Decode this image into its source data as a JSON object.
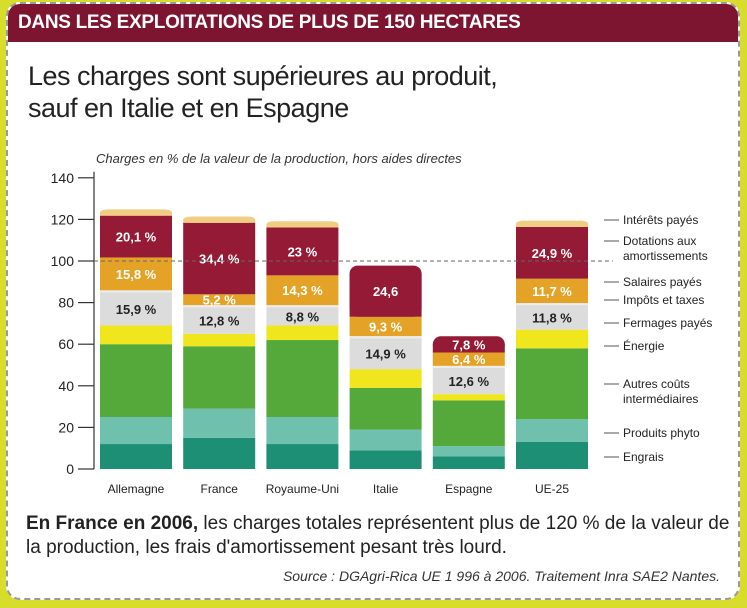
{
  "banner": "DANS LES EXPLOITATIONS DE PLUS DE 150 HECTARES",
  "headline_line1": "Les charges sont supérieures au produit,",
  "headline_line2": "sauf en Italie et en Espagne",
  "caption_bold": "En France en 2006,",
  "caption_rest": " les charges totales représentent plus de 120 % de la valeur de la production, les frais d'amortissement pesant très lourd.",
  "source": "Source : DGAgri-Rica UE 1 996 à 2006. Traitement Inra SAE2 Nantes.",
  "chart_data": {
    "type": "bar",
    "stacked": true,
    "subtitle": "Charges en % de la valeur de la production, hors aides directes",
    "ylim": [
      0,
      140
    ],
    "yticks": [
      0,
      20,
      40,
      60,
      80,
      100,
      120,
      140
    ],
    "reference_line": 100,
    "categories": [
      "Allemagne",
      "France",
      "Royaume-Uni",
      "Italie",
      "Espagne",
      "UE-25"
    ],
    "series": [
      {
        "name": "Engrais",
        "color": "#1d8f74",
        "values": [
          12,
          15,
          12,
          9,
          6,
          13
        ],
        "labels": [
          "",
          "",
          "",
          "",
          "",
          ""
        ]
      },
      {
        "name": "Produits phyto",
        "color": "#6fc0ac",
        "values": [
          13,
          14,
          13,
          10,
          5,
          11
        ],
        "labels": [
          "",
          "",
          "",
          "",
          "",
          ""
        ]
      },
      {
        "name": "Autres coûts intermédiaires",
        "color": "#55a83a",
        "values": [
          35,
          30,
          37,
          20,
          22,
          34
        ],
        "labels": [
          "",
          "",
          "",
          "",
          "",
          ""
        ]
      },
      {
        "name": "Énergie",
        "color": "#f0e61e",
        "values": [
          9,
          6,
          7,
          9,
          3,
          9
        ],
        "labels": [
          "",
          "",
          "",
          "",
          "",
          ""
        ]
      },
      {
        "name": "Fermages payés",
        "color": "#dcdcdc",
        "values": [
          15.9,
          12.8,
          8.8,
          14.9,
          12.6,
          11.8
        ],
        "labels": [
          "15,9 %",
          "12,8 %",
          "8,8 %",
          "14,9 %",
          "12,6 %",
          "11,8 %"
        ]
      },
      {
        "name": "Impôts et taxes",
        "color": "#ececec",
        "values": [
          1,
          1,
          1,
          1,
          1,
          1
        ],
        "labels": [
          "",
          "",
          "",
          "",
          "",
          ""
        ]
      },
      {
        "name": "Salaires payés",
        "color": "#e4a327",
        "values": [
          15.8,
          5.2,
          14.3,
          9.3,
          6.4,
          11.7
        ],
        "labels": [
          "15,8 %",
          "5,2 %",
          "14,3 %",
          "9,3 %",
          "6,4 %",
          "11,7 %"
        ]
      },
      {
        "name": "Dotations aux amortissements",
        "color": "#951a36",
        "values": [
          20.1,
          34.4,
          23,
          24.6,
          7.8,
          24.9
        ],
        "labels": [
          "20,1 %",
          "34,4 %",
          "23 %",
          "24,6",
          "7,8 %",
          "24,9 %"
        ]
      },
      {
        "name": "Intérêts payés",
        "color": "#f1cd84",
        "values": [
          3,
          3,
          3,
          0,
          0,
          3
        ],
        "labels": [
          "",
          "",
          "",
          "",
          "",
          ""
        ]
      }
    ],
    "legend_labels": [
      "Intérêts payés",
      "Dotations aux amortissements",
      "Salaires payés",
      "Impôts et taxes",
      "Fermages payés",
      "Énergie",
      "Autres coûts intermédiaires",
      "Produits phyto",
      "Engrais"
    ]
  }
}
